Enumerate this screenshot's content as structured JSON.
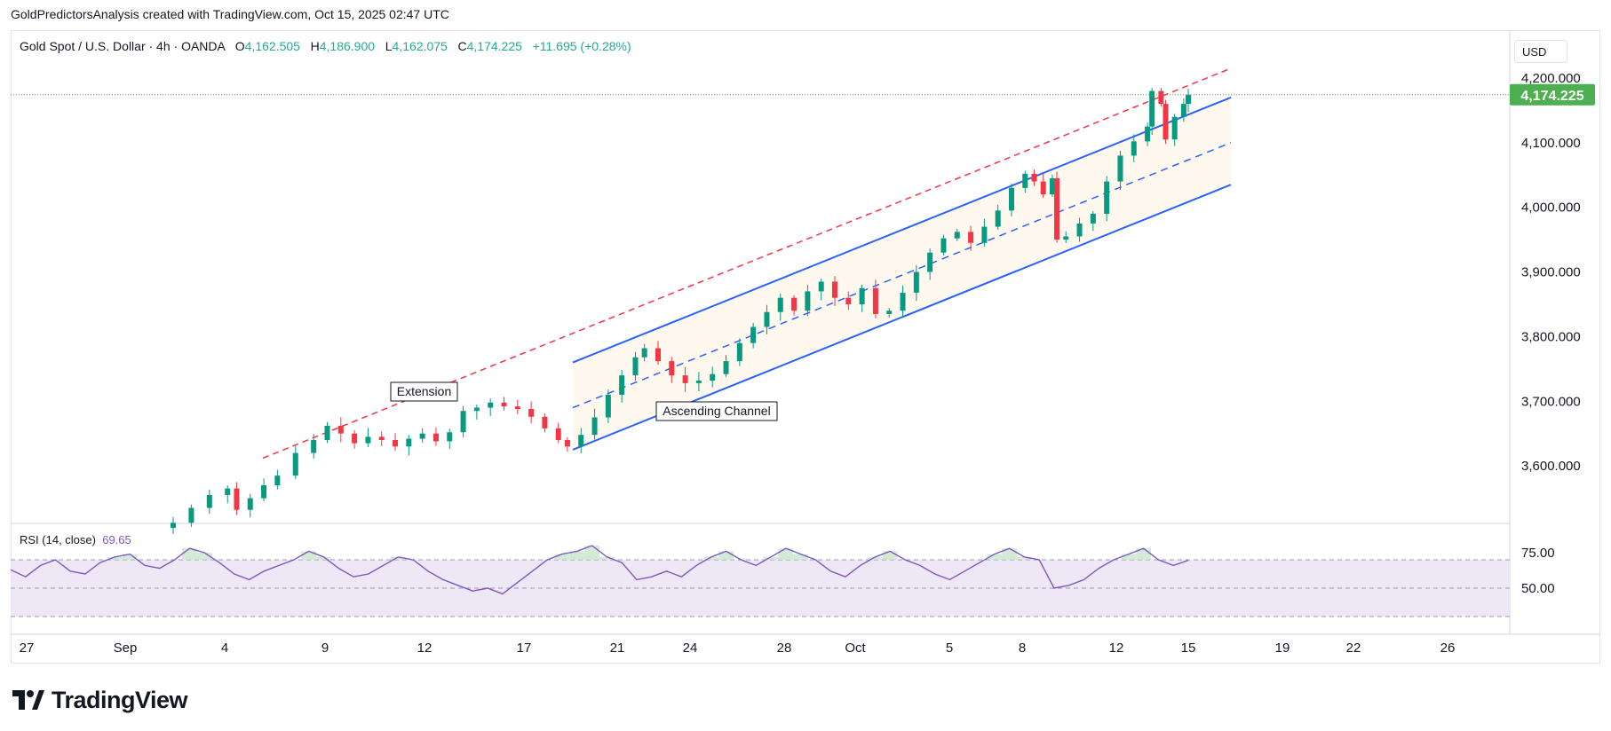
{
  "caption": "GoldPredictorsAnalysis created with TradingView.com, Oct 15, 2025 02:47 UTC",
  "header": {
    "symbol": "Gold Spot / U.S. Dollar · 4h · OANDA",
    "open_label": "O",
    "open": "4,162.505",
    "high_label": "H",
    "high": "4,186.900",
    "low_label": "L",
    "low": "4,162.075",
    "close_label": "C",
    "close": "4,174.225",
    "change": "+11.695 (+0.28%)"
  },
  "currency": "USD",
  "price_tag": "4,174.225",
  "rsi_panel": {
    "title": "RSI (14, close)",
    "value": "69.65"
  },
  "brand": "TradingView",
  "colors": {
    "up": "#089981",
    "down": "#f23645",
    "channel": "#2962ff",
    "extension": "#f23645",
    "rsi_line": "#7e57c2",
    "rsi_fill": "#ede7f6",
    "price_tag": "#4caf50",
    "ob_fill": "#c8e6c9"
  },
  "chart_data": [
    {
      "type": "candlestick",
      "title": "Gold Spot / U.S. Dollar · 4h · OANDA",
      "x_ticks": [
        "27",
        "Sep",
        "4",
        "9",
        "12",
        "17",
        "21",
        "24",
        "28",
        "Oct",
        "5",
        "8",
        "12",
        "15",
        "19",
        "22",
        "26"
      ],
      "y_ticks": [
        "3,600.000",
        "3,700.000",
        "3,800.000",
        "3,900.000",
        "4,000.000",
        "4,100.000",
        "4,200.000"
      ],
      "ylim": [
        3520,
        4245
      ],
      "last_price": 4174.225,
      "ohlc": {
        "open": 4162.505,
        "high": 4186.9,
        "low": 4162.075,
        "close": 4174.225
      },
      "trend_path_close": [
        [
          0,
          3512
        ],
        [
          4,
          3535
        ],
        [
          8,
          3555
        ],
        [
          12,
          3565
        ],
        [
          14,
          3532
        ],
        [
          17,
          3550
        ],
        [
          20,
          3570
        ],
        [
          23,
          3585
        ],
        [
          27,
          3620
        ],
        [
          31,
          3640
        ],
        [
          34,
          3662
        ],
        [
          37,
          3650
        ],
        [
          40,
          3635
        ],
        [
          43,
          3645
        ],
        [
          46,
          3640
        ],
        [
          49,
          3630
        ],
        [
          52,
          3642
        ],
        [
          55,
          3650
        ],
        [
          58,
          3638
        ],
        [
          61,
          3652
        ],
        [
          64,
          3685
        ],
        [
          67,
          3690
        ],
        [
          70,
          3698
        ],
        [
          73,
          3692
        ],
        [
          76,
          3688
        ],
        [
          79,
          3676
        ],
        [
          82,
          3658
        ],
        [
          85,
          3640
        ],
        [
          87,
          3630
        ],
        [
          90,
          3648
        ],
        [
          93,
          3675
        ],
        [
          96,
          3710
        ],
        [
          99,
          3740
        ],
        [
          102,
          3768
        ],
        [
          104,
          3782
        ],
        [
          107,
          3762
        ],
        [
          110,
          3740
        ],
        [
          113,
          3728
        ],
        [
          116,
          3732
        ],
        [
          119,
          3742
        ],
        [
          122,
          3762
        ],
        [
          125,
          3790
        ],
        [
          128,
          3815
        ],
        [
          131,
          3838
        ],
        [
          134,
          3860
        ],
        [
          137,
          3840
        ],
        [
          140,
          3870
        ],
        [
          143,
          3885
        ],
        [
          146,
          3860
        ],
        [
          149,
          3850
        ],
        [
          152,
          3875
        ],
        [
          155,
          3835
        ],
        [
          158,
          3840
        ],
        [
          161,
          3868
        ],
        [
          164,
          3900
        ],
        [
          167,
          3930
        ],
        [
          170,
          3952
        ],
        [
          173,
          3962
        ],
        [
          176,
          3945
        ],
        [
          179,
          3970
        ],
        [
          182,
          3995
        ],
        [
          185,
          4030
        ],
        [
          188,
          4052
        ],
        [
          190,
          4040
        ],
        [
          192,
          4020
        ],
        [
          194,
          4045
        ],
        [
          195,
          3950
        ],
        [
          197,
          3955
        ],
        [
          200,
          3975
        ],
        [
          203,
          3990
        ],
        [
          206,
          4040
        ],
        [
          209,
          4080
        ],
        [
          212,
          4102
        ],
        [
          215,
          4125
        ],
        [
          216,
          4180
        ],
        [
          218,
          4160
        ],
        [
          219,
          4105
        ],
        [
          221,
          4140
        ],
        [
          223,
          4160
        ],
        [
          224,
          4174.225
        ]
      ],
      "pattern_labels": [
        "Extension",
        "Ascending Channel"
      ],
      "ascending_channel": {
        "start": [
          0,
          3625
        ],
        "end": [
          1,
          4035
        ],
        "mid_start": [
          0,
          3690
        ],
        "mid_end": [
          1,
          4100
        ],
        "top_start": [
          0,
          3760
        ],
        "top_end": [
          1,
          4170
        ]
      },
      "extension_line": {
        "start": [
          0,
          3612
        ],
        "end": [
          1,
          4215
        ]
      }
    },
    {
      "type": "line",
      "title": "RSI (14, close)",
      "series": [
        {
          "name": "RSI (14, close)",
          "last": 69.65,
          "values": [
            63,
            58,
            66,
            70,
            62,
            60,
            68,
            72,
            74,
            66,
            64,
            70,
            78,
            75,
            68,
            60,
            56,
            62,
            66,
            70,
            76,
            72,
            64,
            58,
            60,
            66,
            72,
            70,
            62,
            56,
            52,
            48,
            50,
            46,
            54,
            62,
            70,
            74,
            76,
            80,
            72,
            68,
            56,
            58,
            62,
            58,
            66,
            72,
            76,
            70,
            66,
            72,
            78,
            74,
            70,
            62,
            58,
            66,
            72,
            76,
            70,
            66,
            60,
            56,
            62,
            68,
            74,
            78,
            72,
            70,
            50,
            52,
            56,
            64,
            70,
            74,
            78,
            70,
            66,
            69.65
          ]
        }
      ],
      "y_ticks": [
        "50.00",
        "75.00"
      ],
      "ylim": [
        25,
        100
      ],
      "bands": [
        30,
        50,
        70
      ]
    }
  ]
}
